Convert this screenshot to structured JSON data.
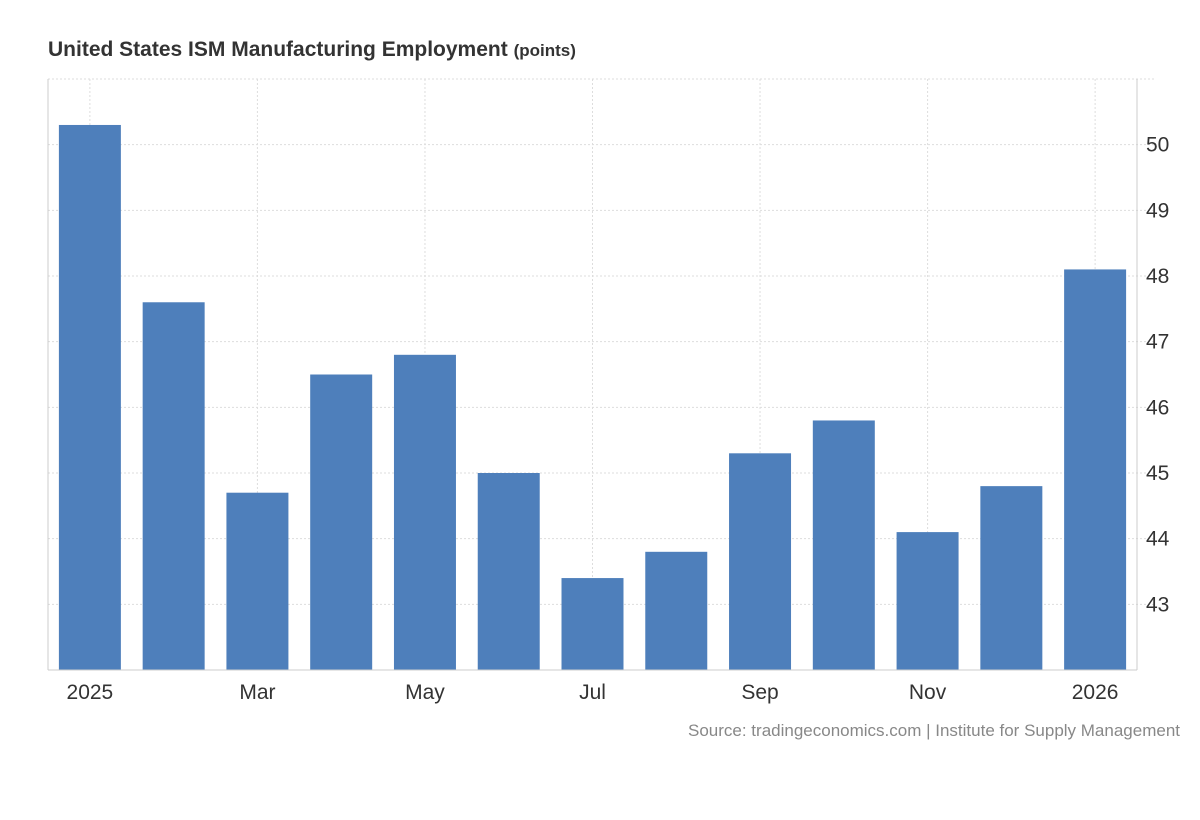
{
  "chart_data": {
    "type": "bar",
    "title": "United States ISM Manufacturing Employment",
    "unit": "(points)",
    "categories": [
      "Jan 2025",
      "Feb 2025",
      "Mar 2025",
      "Apr 2025",
      "May 2025",
      "Jun 2025",
      "Jul 2025",
      "Aug 2025",
      "Sep 2025",
      "Oct 2025",
      "Nov 2025",
      "Dec 2025",
      "Jan 2026"
    ],
    "values": [
      50.3,
      47.6,
      44.7,
      46.5,
      46.8,
      45.0,
      43.4,
      43.8,
      45.3,
      45.8,
      44.1,
      44.8,
      48.1
    ],
    "x_tick_labels": [
      {
        "index": 0,
        "label": "2025"
      },
      {
        "index": 2,
        "label": "Mar"
      },
      {
        "index": 4,
        "label": "May"
      },
      {
        "index": 6,
        "label": "Jul"
      },
      {
        "index": 8,
        "label": "Sep"
      },
      {
        "index": 10,
        "label": "Nov"
      },
      {
        "index": 12,
        "label": "2026"
      }
    ],
    "y_ticks": [
      43,
      44,
      45,
      46,
      47,
      48,
      49,
      50
    ],
    "ylim": [
      42.0,
      51.0
    ],
    "xlabel": "",
    "ylabel": "",
    "y_axis_position": "right",
    "grid": true,
    "bar_color": "#4e7fbb"
  },
  "source": "Source: tradingeconomics.com | Institute for Supply Management"
}
